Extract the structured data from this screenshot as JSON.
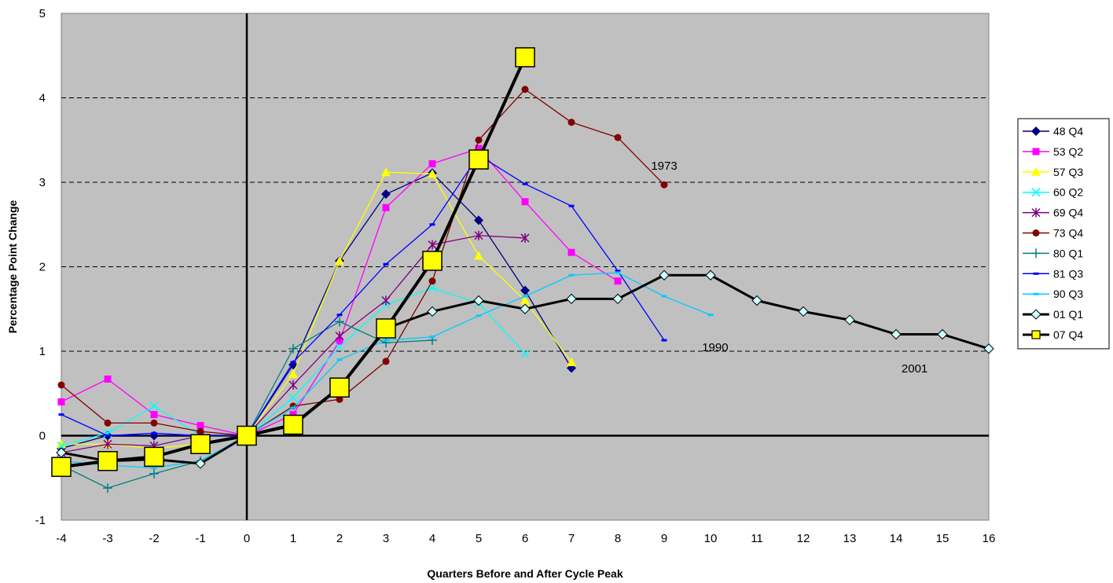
{
  "chart_data": {
    "type": "line",
    "xlabel": "Quarters Before and After Cycle Peak",
    "ylabel": "Percentage Point Change",
    "xlim": [
      -4,
      16
    ],
    "ylim": [
      -1,
      5
    ],
    "x_ticks": [
      -4,
      -3,
      -2,
      -1,
      0,
      1,
      2,
      3,
      4,
      5,
      6,
      7,
      8,
      9,
      10,
      11,
      12,
      13,
      14,
      15,
      16
    ],
    "y_ticks": [
      -1,
      0,
      1,
      2,
      3,
      4,
      5
    ],
    "grid": "horizontal dashed",
    "legend_position": "right",
    "plot_background": "#c0c0c0",
    "series": [
      {
        "name": "48 Q4",
        "color": "#000080",
        "marker": "diamond",
        "x": [
          -4,
          -3,
          -2,
          -1,
          0,
          1,
          2,
          3,
          4,
          5,
          6,
          7
        ],
        "values": [
          -0.15,
          0.0,
          0.0,
          0.0,
          0.0,
          0.84,
          2.07,
          2.86,
          3.11,
          2.55,
          1.72,
          0.8
        ]
      },
      {
        "name": "53 Q2",
        "color": "#ff00ff",
        "marker": "square",
        "x": [
          -4,
          -3,
          -2,
          -1,
          0,
          1,
          2,
          3,
          4,
          5,
          6,
          7,
          8
        ],
        "values": [
          0.4,
          0.67,
          0.25,
          0.12,
          0.0,
          0.25,
          1.12,
          2.7,
          3.22,
          3.4,
          2.77,
          2.17,
          1.83
        ]
      },
      {
        "name": "57 Q3",
        "color": "#ffff00",
        "marker": "triangle",
        "x": [
          -4,
          -3,
          -2,
          -1,
          0,
          1,
          2,
          3,
          4,
          5,
          6,
          7
        ],
        "values": [
          -0.1,
          -0.1,
          -0.15,
          -0.1,
          0.0,
          0.73,
          2.07,
          3.12,
          3.1,
          2.13,
          1.6,
          0.87
        ]
      },
      {
        "name": "60 Q2",
        "color": "#00ffff",
        "marker": "x",
        "x": [
          -4,
          -3,
          -2,
          -1,
          0,
          1,
          2,
          3,
          4,
          5,
          6
        ],
        "values": [
          -0.12,
          0.03,
          0.35,
          0.0,
          0.0,
          0.45,
          1.05,
          1.55,
          1.75,
          1.57,
          0.97
        ]
      },
      {
        "name": "69 Q4",
        "color": "#800080",
        "marker": "star",
        "x": [
          -4,
          -3,
          -2,
          -1,
          0,
          1,
          2,
          3,
          4,
          5,
          6
        ],
        "values": [
          -0.2,
          -0.1,
          -0.12,
          0.0,
          0.0,
          0.6,
          1.18,
          1.6,
          2.26,
          2.37,
          2.34
        ]
      },
      {
        "name": "73 Q4",
        "color": "#800000",
        "marker": "circle",
        "x": [
          -4,
          -3,
          -2,
          -1,
          0,
          1,
          2,
          3,
          4,
          5,
          6,
          7,
          8,
          9
        ],
        "values": [
          0.6,
          0.15,
          0.15,
          0.05,
          0.0,
          0.35,
          0.43,
          0.88,
          1.83,
          3.5,
          4.1,
          3.71,
          3.53,
          2.97
        ]
      },
      {
        "name": "80 Q1",
        "color": "#008080",
        "marker": "plus",
        "x": [
          -4,
          -3,
          -2,
          -1,
          0,
          1,
          2,
          3,
          4
        ],
        "values": [
          -0.35,
          -0.62,
          -0.45,
          -0.3,
          0.0,
          1.03,
          1.35,
          1.1,
          1.13
        ]
      },
      {
        "name": "81 Q3",
        "color": "#0000ff",
        "marker": "dash",
        "x": [
          -4,
          -3,
          -2,
          -1,
          0,
          1,
          2,
          3,
          4,
          5,
          6,
          7,
          8,
          9
        ],
        "values": [
          0.25,
          0.0,
          0.03,
          0.0,
          0.0,
          0.87,
          1.43,
          2.03,
          2.5,
          3.32,
          2.98,
          2.72,
          1.95,
          1.13
        ]
      },
      {
        "name": "90 Q3",
        "color": "#00ccff",
        "marker": "dash",
        "x": [
          -4,
          -3,
          -2,
          -1,
          0,
          1,
          2,
          3,
          4,
          5,
          6,
          7,
          8,
          9,
          10
        ],
        "values": [
          -0.3,
          -0.35,
          -0.38,
          -0.3,
          0.0,
          0.33,
          0.9,
          1.13,
          1.17,
          1.42,
          1.65,
          1.9,
          1.93,
          1.65,
          1.43
        ]
      },
      {
        "name": "01 Q1",
        "color": "#000000",
        "marker": "diamond-open",
        "x": [
          -4,
          -3,
          -2,
          -1,
          0,
          1,
          2,
          3,
          4,
          5,
          6,
          7,
          8,
          9,
          10,
          11,
          12,
          13,
          14,
          15,
          16
        ],
        "values": [
          -0.2,
          -0.3,
          -0.28,
          -0.33,
          0.0,
          0.12,
          0.57,
          1.27,
          1.47,
          1.6,
          1.5,
          1.62,
          1.62,
          1.9,
          1.9,
          1.6,
          1.47,
          1.37,
          1.2,
          1.2,
          1.03
        ]
      },
      {
        "name": "07 Q4",
        "color": "#000000",
        "marker": "square-yellow",
        "x": [
          -4,
          -3,
          -2,
          -1,
          0,
          1,
          2,
          3,
          4,
          5,
          6
        ],
        "values": [
          -0.37,
          -0.3,
          -0.25,
          -0.1,
          0.0,
          0.13,
          0.57,
          1.27,
          2.07,
          3.27,
          4.48
        ]
      }
    ],
    "annotations": [
      {
        "text": "1973",
        "x": 9,
        "y": 3.15
      },
      {
        "text": "1990",
        "x": 10.1,
        "y": 1.0
      },
      {
        "text": "2001",
        "x": 14.4,
        "y": 0.75
      }
    ]
  }
}
